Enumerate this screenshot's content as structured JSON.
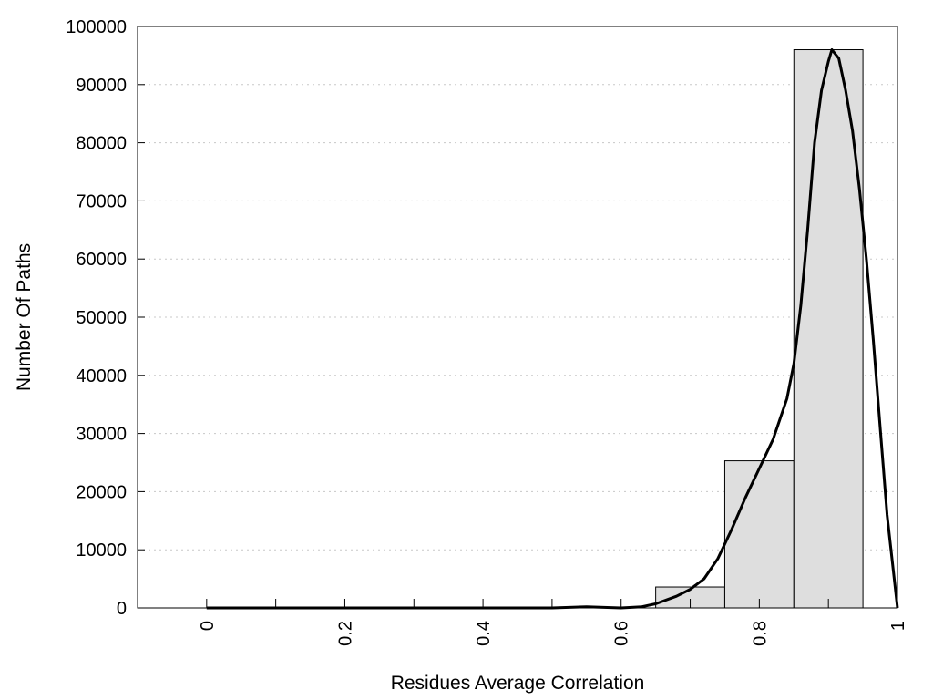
{
  "chart_data": {
    "type": "bar",
    "title": "",
    "xlabel": "Residues Average Correlation",
    "ylabel": "Number Of Paths",
    "xlim": [
      -0.1,
      1.0
    ],
    "ylim": [
      0,
      100000
    ],
    "x_ticks": [
      0,
      0.1,
      0.2,
      0.3,
      0.4,
      0.5,
      0.6,
      0.7,
      0.8,
      0.9,
      1.0
    ],
    "x_tick_labels": [
      {
        "value": 0,
        "label": "0"
      },
      {
        "value": 0.2,
        "label": "0.2"
      },
      {
        "value": 0.4,
        "label": "0.4"
      },
      {
        "value": 0.6,
        "label": "0.6"
      },
      {
        "value": 0.8,
        "label": "0.8"
      },
      {
        "value": 1.0,
        "label": "1"
      }
    ],
    "y_ticks": [
      0,
      10000,
      20000,
      30000,
      40000,
      50000,
      60000,
      70000,
      80000,
      90000,
      100000
    ],
    "y_tick_labels": [
      "0",
      "10000",
      "20000",
      "30000",
      "40000",
      "50000",
      "60000",
      "70000",
      "80000",
      "90000",
      "100000"
    ],
    "grid": "horizontal dotted",
    "bars": [
      {
        "x_start": 0.65,
        "x_end": 0.75,
        "value": 3600
      },
      {
        "x_start": 0.75,
        "x_end": 0.85,
        "value": 25300
      },
      {
        "x_start": 0.85,
        "x_end": 0.95,
        "value": 96000
      }
    ],
    "fit_curve": [
      [
        0.0,
        0
      ],
      [
        0.5,
        0
      ],
      [
        0.55,
        200
      ],
      [
        0.6,
        0
      ],
      [
        0.63,
        200
      ],
      [
        0.65,
        700
      ],
      [
        0.68,
        2000
      ],
      [
        0.7,
        3200
      ],
      [
        0.72,
        5000
      ],
      [
        0.74,
        8500
      ],
      [
        0.76,
        13500
      ],
      [
        0.78,
        19000
      ],
      [
        0.8,
        24000
      ],
      [
        0.82,
        29000
      ],
      [
        0.84,
        36000
      ],
      [
        0.85,
        42000
      ],
      [
        0.86,
        52000
      ],
      [
        0.87,
        65000
      ],
      [
        0.88,
        80000
      ],
      [
        0.89,
        89000
      ],
      [
        0.9,
        94000
      ],
      [
        0.905,
        96000
      ],
      [
        0.915,
        94500
      ],
      [
        0.925,
        89000
      ],
      [
        0.935,
        82000
      ],
      [
        0.945,
        72000
      ],
      [
        0.955,
        60000
      ],
      [
        0.965,
        46000
      ],
      [
        0.975,
        31000
      ],
      [
        0.985,
        16000
      ],
      [
        1.0,
        0
      ]
    ]
  }
}
